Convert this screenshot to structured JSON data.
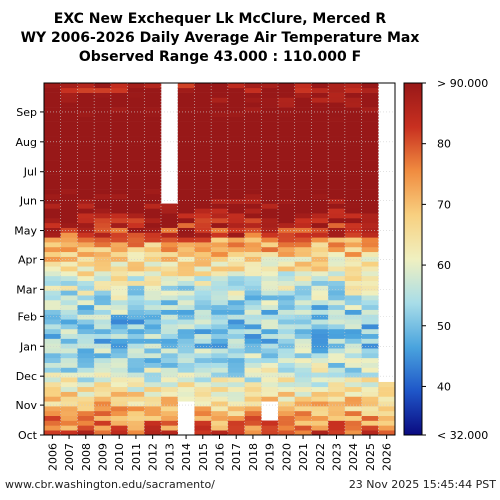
{
  "header": {
    "title_line1": "EXC New Exchequer Lk McClure, Merced R",
    "title_line2": "WY 2006-2026 Daily Average Air Temperature Max",
    "title_line3": "Observed Range 43.000 : 110.000 F"
  },
  "footer": {
    "url": "www.cbr.washington.edu/sacramento/",
    "timestamp": "23 Nov 2025 15:45:44 PST"
  },
  "chart_data": {
    "type": "heatmap",
    "x_categories": [
      "2006",
      "2007",
      "2008",
      "2009",
      "2010",
      "2011",
      "2012",
      "2013",
      "2014",
      "2015",
      "2016",
      "2017",
      "2018",
      "2019",
      "2020",
      "2021",
      "2022",
      "2023",
      "2024",
      "2025",
      "2026"
    ],
    "y_ticks": [
      "Sep",
      "Aug",
      "Jul",
      "Jun",
      "May",
      "Apr",
      "Mar",
      "Feb",
      "Jan",
      "Dec",
      "Nov",
      "Oct"
    ],
    "colorbar": {
      "ticks": [
        "> 90.000",
        "80",
        "70",
        "60",
        "50",
        "40",
        "< 32.000"
      ],
      "min": 32,
      "max": 90,
      "colors": [
        "#0a0a80",
        "#1f56c8",
        "#4aa4de",
        "#a8dde8",
        "#f0f0c0",
        "#f8d080",
        "#f08c40",
        "#c83020",
        "#981818"
      ]
    },
    "grid": true
  }
}
